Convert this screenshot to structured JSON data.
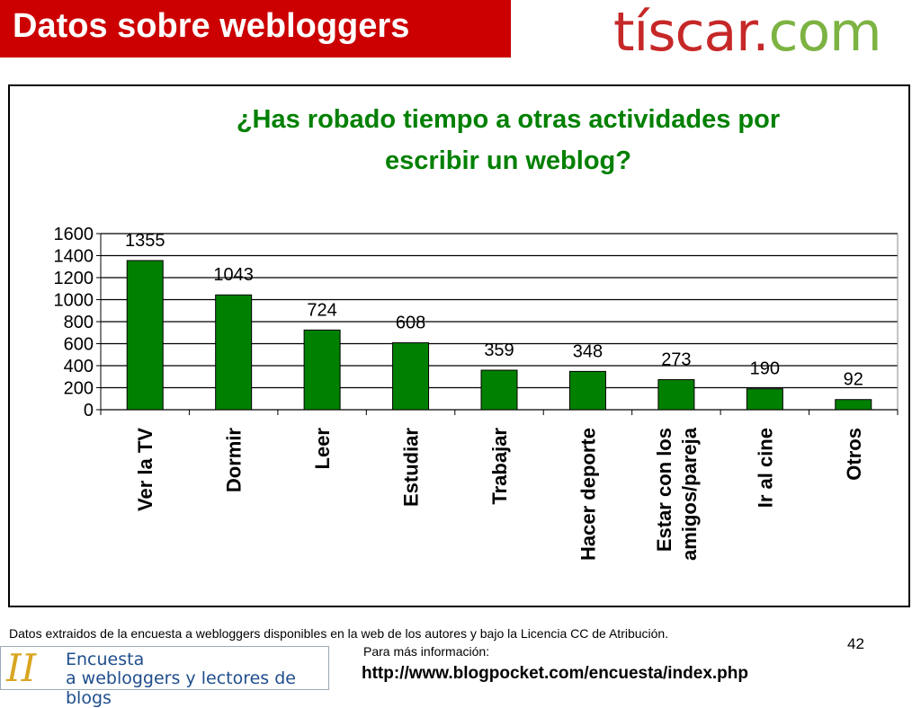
{
  "header": {
    "title": "Datos sobre webloggers",
    "logo_part1": "tíscar.",
    "logo_part2": "com"
  },
  "colors": {
    "title_bar": "#cc0000",
    "chart_title": "#008000",
    "bar": "#008000",
    "logo_red": "#c62828",
    "logo_green": "#7cb342"
  },
  "chart_data": {
    "type": "bar",
    "title_lines": [
      "¿Has robado tiempo a otras actividades por",
      "escribir un weblog?"
    ],
    "categories": [
      [
        "Ver la TV"
      ],
      [
        "Dormir"
      ],
      [
        "Leer"
      ],
      [
        "Estudiar"
      ],
      [
        "Trabajar"
      ],
      [
        "Hacer deporte"
      ],
      [
        "Estar con los",
        "amigos/pareja"
      ],
      [
        "Ir al cine"
      ],
      [
        "Otros"
      ]
    ],
    "values": [
      1355,
      1043,
      724,
      608,
      359,
      348,
      273,
      190,
      92
    ],
    "ylim": [
      0,
      1600
    ],
    "yticks": [
      0,
      200,
      400,
      600,
      800,
      1000,
      1200,
      1400,
      1600
    ],
    "grid": true,
    "legend": "none"
  },
  "footer": {
    "source_text": "Datos extraidos de la encuesta a webloggers disponibles en la web de los autores y bajo la Licencia CC  de Atribución.",
    "more_info": "Para más información:",
    "url": "http://www.blogpocket.com/encuesta/index.php",
    "page_number": "42"
  },
  "banner": {
    "roman": "II",
    "line1": "Encuesta",
    "line2": "a webloggers y lectores de blogs"
  }
}
